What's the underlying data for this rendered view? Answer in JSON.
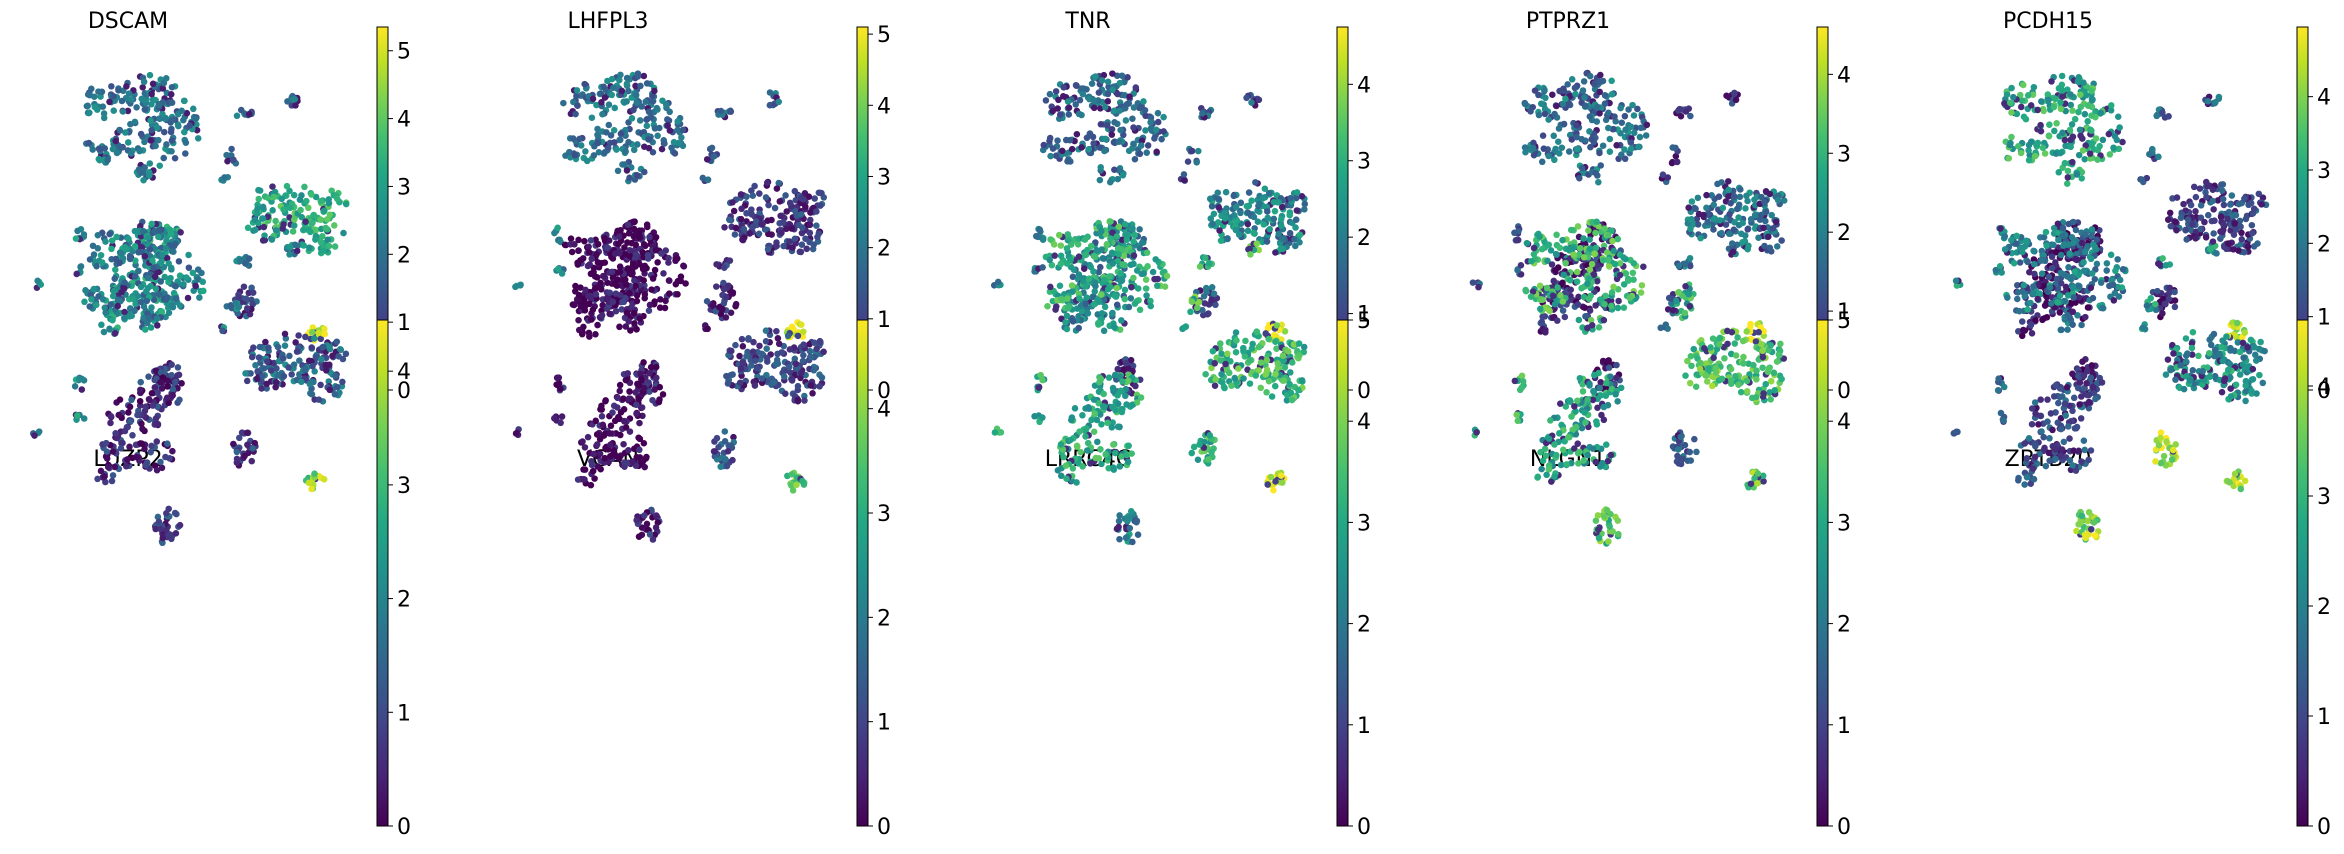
{
  "chart_data": [
    {
      "type": "scatter",
      "title": "DSCAM",
      "colorbar": {
        "ticks": [
          "0",
          "1",
          "2",
          "3",
          "4",
          "5"
        ],
        "vmax": 5.35
      },
      "cluster_expression": {
        "top_left": 2.0,
        "top_small": 1.8,
        "right_big": 3.3,
        "left_dot": 2.8,
        "mid": 2.8,
        "small_right": 1.3,
        "yellow": 5.0,
        "bottom": 1.0
      }
    },
    {
      "type": "scatter",
      "title": "LHFPL3",
      "colorbar": {
        "ticks": [
          "0",
          "1",
          "2",
          "3",
          "4",
          "5"
        ],
        "vmax": 5.1
      },
      "cluster_expression": {
        "top_left": 1.9,
        "top_small": 1.6,
        "right_big": 0.9,
        "left_dot": 2.2,
        "mid": 0.3,
        "small_right": 0.4,
        "yellow": 5.0,
        "bottom": 0.5
      }
    },
    {
      "type": "scatter",
      "title": "TNR",
      "colorbar": {
        "ticks": [
          "0",
          "1",
          "2",
          "3",
          "4"
        ],
        "vmax": 4.75
      },
      "cluster_expression": {
        "top_left": 1.6,
        "top_small": 1.5,
        "right_big": 2.1,
        "left_dot": 1.9,
        "mid": 2.0,
        "small_right": 1.2,
        "yellow": 4.5,
        "bottom": 0.6
      }
    },
    {
      "type": "scatter",
      "title": "PTPRZ1",
      "colorbar": {
        "ticks": [
          "0",
          "1",
          "2",
          "3",
          "4"
        ],
        "vmax": 4.6
      },
      "cluster_expression": {
        "top_left": 1.7,
        "top_small": 0.8,
        "right_big": 1.7,
        "left_dot": 1.2,
        "mid": 0.6,
        "small_right": 2.8,
        "yellow": 4.4,
        "bottom": 0.5
      }
    },
    {
      "type": "scatter",
      "title": "PCDH15",
      "colorbar": {
        "ticks": [
          "0",
          "1",
          "2",
          "3",
          "4"
        ],
        "vmax": 4.95
      },
      "cluster_expression": {
        "top_left": 3.0,
        "top_small": 1.5,
        "right_big": 1.1,
        "left_dot": 2.4,
        "mid": 0.4,
        "small_right": 0.5,
        "yellow": 4.3,
        "bottom": 0.5
      }
    },
    {
      "type": "scatter",
      "title": "LUZP2",
      "colorbar": {
        "ticks": [
          "0",
          "1",
          "2",
          "3",
          "4"
        ],
        "vmax": 4.45
      },
      "cluster_expression": {
        "top_left": 1.9,
        "top_small": 2.0,
        "right_big": 1.4,
        "left_dot": 2.0,
        "mid": 0.6,
        "small_right": 0.9,
        "yellow": 3.6,
        "bottom": 1.0
      }
    },
    {
      "type": "scatter",
      "title": "VCAN",
      "colorbar": {
        "ticks": [
          "0",
          "1",
          "2",
          "3",
          "4"
        ],
        "vmax": 4.85
      },
      "cluster_expression": {
        "top_left": 0.1,
        "top_small": 0.8,
        "right_big": 1.1,
        "left_dot": 0.3,
        "mid": 0.1,
        "small_right": 1.3,
        "yellow": 3.8,
        "bottom": 0.4
      }
    },
    {
      "type": "scatter",
      "title": "LRRC4C",
      "colorbar": {
        "ticks": [
          "0",
          "1",
          "2",
          "3",
          "4",
          "5"
        ],
        "vmax": 5.0
      },
      "cluster_expression": {
        "top_left": 3.1,
        "top_small": 3.4,
        "right_big": 3.3,
        "left_dot": 3.0,
        "mid": 3.0,
        "small_right": 3.2,
        "yellow": 4.8,
        "bottom": 2.2
      }
    },
    {
      "type": "scatter",
      "title": "NLGN1",
      "colorbar": {
        "ticks": [
          "0",
          "1",
          "2",
          "3",
          "4",
          "5"
        ],
        "vmax": 5.0
      },
      "cluster_expression": {
        "top_left": 3.3,
        "top_small": 1.8,
        "right_big": 3.6,
        "left_dot": 3.1,
        "mid": 2.9,
        "small_right": 1.5,
        "yellow": 3.8,
        "bottom": 3.6
      }
    },
    {
      "type": "scatter",
      "title": "ZBTB20",
      "colorbar": {
        "ticks": [
          "0",
          "1",
          "2",
          "3",
          "4"
        ],
        "vmax": 4.6
      },
      "cluster_expression": {
        "top_left": 2.0,
        "top_small": 2.4,
        "right_big": 2.3,
        "left_dot": 1.3,
        "mid": 1.1,
        "small_right": 4.0,
        "yellow": 3.8,
        "bottom": 3.8
      }
    }
  ]
}
